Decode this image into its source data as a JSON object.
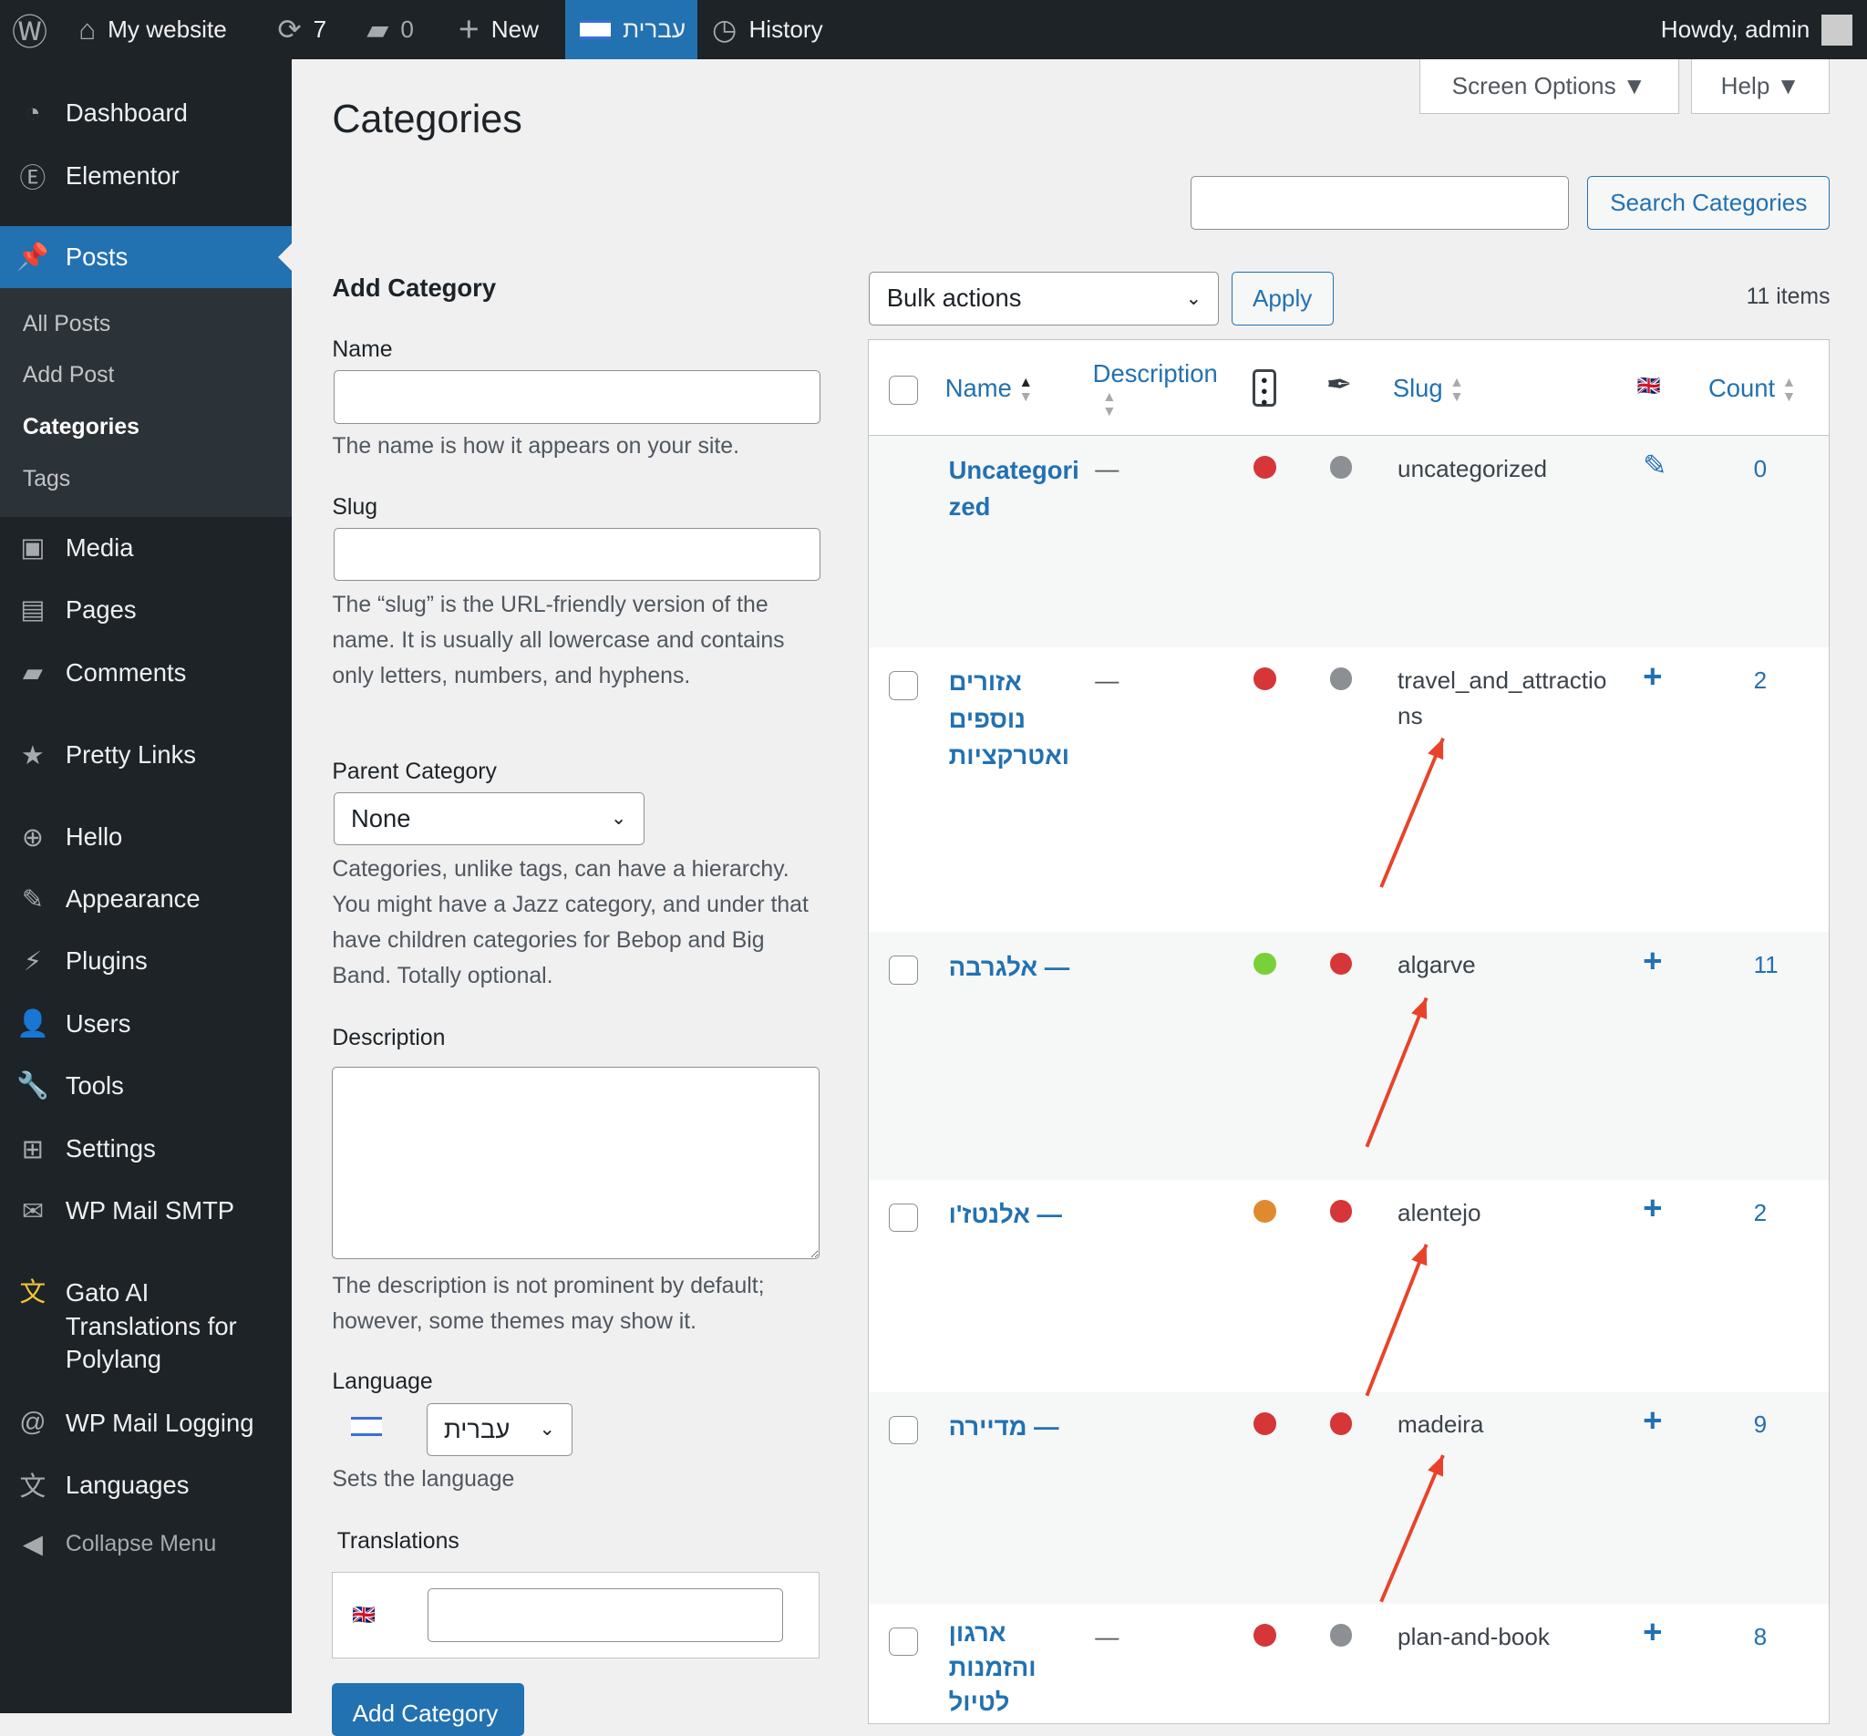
{
  "topbar": {
    "site": "My website",
    "updates": "7",
    "comments": "0",
    "new": "New",
    "language": "עברית",
    "history": "History",
    "howdy": "Howdy, admin"
  },
  "sidebar": {
    "items": [
      {
        "label": "Dashboard",
        "icon": "dashboard-icon"
      },
      {
        "label": "Elementor",
        "icon": "elementor-icon"
      },
      {
        "label": "Posts",
        "icon": "pin-icon"
      },
      {
        "label": "Media",
        "icon": "media-icon"
      },
      {
        "label": "Pages",
        "icon": "pages-icon"
      },
      {
        "label": "Comments",
        "icon": "comment-icon"
      },
      {
        "label": "Pretty Links",
        "icon": "star-icon"
      },
      {
        "label": "Hello",
        "icon": "plus-circle-icon"
      },
      {
        "label": "Appearance",
        "icon": "brush-icon"
      },
      {
        "label": "Plugins",
        "icon": "plug-icon"
      },
      {
        "label": "Users",
        "icon": "user-icon"
      },
      {
        "label": "Tools",
        "icon": "wrench-icon"
      },
      {
        "label": "Settings",
        "icon": "settings-icon"
      },
      {
        "label": "WP Mail SMTP",
        "icon": "mail-icon"
      },
      {
        "label": "Gato AI Translations for Polylang",
        "icon": "translate-icon"
      },
      {
        "label": "WP Mail Logging",
        "icon": "at-icon"
      },
      {
        "label": "Languages",
        "icon": "languages-icon"
      },
      {
        "label": "Collapse Menu",
        "icon": "collapse-icon"
      }
    ],
    "submenu": [
      "All Posts",
      "Add Post",
      "Categories",
      "Tags"
    ]
  },
  "page": {
    "title": "Categories",
    "screen_options": "Screen Options",
    "help": "Help",
    "search_button": "Search Categories",
    "search_value": ""
  },
  "form": {
    "heading": "Add Category",
    "name_label": "Name",
    "name_hint": "The name is how it appears on your site.",
    "slug_label": "Slug",
    "slug_hint": "The “slug” is the URL-friendly version of the name. It is usually all lowercase and contains only letters, numbers, and hyphens.",
    "parent_label": "Parent Category",
    "parent_value": "None",
    "parent_hint": "Categories, unlike tags, can have a hierarchy. You might have a Jazz category, and under that have children categories for Bebop and Big Band. Totally optional.",
    "desc_label": "Description",
    "desc_hint": "The description is not prominent by default; however, some themes may show it.",
    "lang_label": "Language",
    "lang_value": "עברית",
    "lang_hint": "Sets the language",
    "trans_label": "Translations",
    "submit": "Add Category"
  },
  "list": {
    "bulk": "Bulk actions",
    "apply": "Apply",
    "count": "11 items",
    "headers": {
      "name": "Name",
      "description": "Description",
      "slug": "Slug",
      "count": "Count"
    },
    "rows": [
      {
        "name": "Uncategorized",
        "desc": "—",
        "s1": "#d63638",
        "s2": "#8c8f94",
        "slug": "uncategorized",
        "action": "edit",
        "count": "0",
        "checkbox": false
      },
      {
        "name": "אזורים נוספים ואטרקציות",
        "desc": "—",
        "s1": "#d63638",
        "s2": "#8c8f94",
        "slug": "travel_and_attractions",
        "action": "add",
        "count": "2",
        "checkbox": true
      },
      {
        "name": "— אלגרבה",
        "desc": "",
        "s1": "#7ad03a",
        "s2": "#d63638",
        "slug": "algarve",
        "action": "add",
        "count": "11",
        "checkbox": true
      },
      {
        "name": "— אלנטז'ו",
        "desc": "",
        "s1": "#e08a2f",
        "s2": "#d63638",
        "slug": "alentejo",
        "action": "add",
        "count": "2",
        "checkbox": true
      },
      {
        "name": "— מדיירה",
        "desc": "",
        "s1": "#d63638",
        "s2": "#d63638",
        "slug": "madeira",
        "action": "add",
        "count": "9",
        "checkbox": true
      },
      {
        "name": "ארגון והזמנות לטיול",
        "desc": "—",
        "s1": "#d63638",
        "s2": "#8c8f94",
        "slug": "plan-and-book",
        "action": "add",
        "count": "8",
        "checkbox": true
      }
    ]
  },
  "colors": {
    "accent": "#2271b1",
    "admin_bar": "#1d2327",
    "arrow": "#e8432a"
  }
}
